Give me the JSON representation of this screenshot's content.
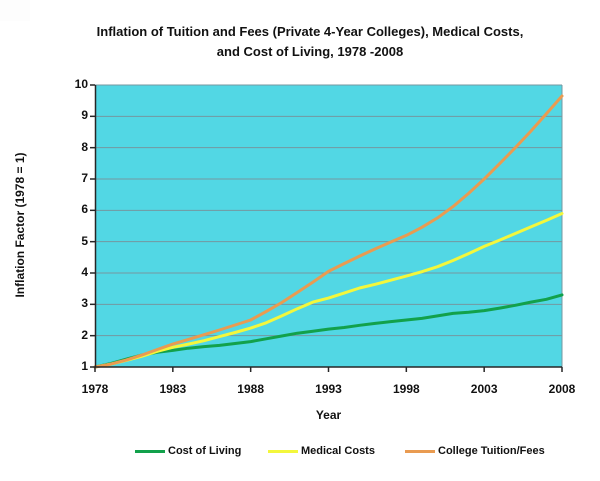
{
  "title": {
    "line1": "Inflation of Tuition and Fees (Private 4-Year Colleges), Medical Costs,",
    "line2": "and Cost of Living, 1978 -2008"
  },
  "axes": {
    "y_label": "Inflation Factor (1978 = 1)",
    "x_label": "Year"
  },
  "legend": [
    {
      "label": "Cost of Living",
      "color": "#12A14B"
    },
    {
      "label": "Medical Costs",
      "color": "#F3F73C"
    },
    {
      "label": "College Tuition/Fees",
      "color": "#E99B51"
    }
  ],
  "colors": {
    "plot_background": "#52D7E4",
    "gridline": "#7597A0",
    "axis": "#262626",
    "text": "#111111"
  },
  "chart_data": {
    "type": "line",
    "title": "Inflation of Tuition and Fees (Private 4-Year Colleges), Medical Costs, and Cost of Living, 1978 -2008",
    "xlabel": "Year",
    "ylabel": "Inflation Factor (1978 = 1)",
    "xlim": [
      1978,
      2008
    ],
    "ylim": [
      1,
      10
    ],
    "x_ticks": [
      1978,
      1983,
      1988,
      1993,
      1998,
      2003,
      2008
    ],
    "y_ticks": [
      10,
      9,
      8,
      7,
      6,
      5,
      4,
      3,
      2,
      1
    ],
    "grid": "on",
    "legend_position": "bottom",
    "x": [
      1978,
      1979,
      1980,
      1981,
      1982,
      1983,
      1984,
      1985,
      1986,
      1987,
      1988,
      1989,
      1990,
      1991,
      1992,
      1993,
      1994,
      1995,
      1996,
      1997,
      1998,
      1999,
      2000,
      2001,
      2002,
      2003,
      2004,
      2005,
      2006,
      2007,
      2008
    ],
    "series": [
      {
        "name": "Cost of Living",
        "color": "#12A14B",
        "values": [
          1.0,
          1.11,
          1.25,
          1.38,
          1.47,
          1.53,
          1.6,
          1.65,
          1.69,
          1.75,
          1.81,
          1.9,
          1.99,
          2.08,
          2.14,
          2.21,
          2.26,
          2.33,
          2.39,
          2.45,
          2.5,
          2.55,
          2.63,
          2.71,
          2.75,
          2.8,
          2.88,
          2.97,
          3.07,
          3.16,
          3.3
        ]
      },
      {
        "name": "Medical Costs",
        "color": "#F3F73C",
        "values": [
          1.0,
          1.09,
          1.21,
          1.34,
          1.5,
          1.63,
          1.73,
          1.84,
          1.97,
          2.1,
          2.24,
          2.41,
          2.63,
          2.86,
          3.07,
          3.2,
          3.36,
          3.52,
          3.64,
          3.77,
          3.9,
          4.04,
          4.2,
          4.4,
          4.62,
          4.85,
          5.05,
          5.26,
          5.47,
          5.68,
          5.9
        ]
      },
      {
        "name": "College Tuition/Fees",
        "color": "#E99B51",
        "values": [
          1.0,
          1.09,
          1.22,
          1.38,
          1.56,
          1.73,
          1.88,
          2.03,
          2.18,
          2.34,
          2.5,
          2.77,
          3.06,
          3.38,
          3.71,
          4.05,
          4.3,
          4.54,
          4.77,
          4.99,
          5.2,
          5.46,
          5.76,
          6.12,
          6.54,
          7.0,
          7.49,
          8.0,
          8.53,
          9.08,
          9.65
        ]
      }
    ]
  }
}
